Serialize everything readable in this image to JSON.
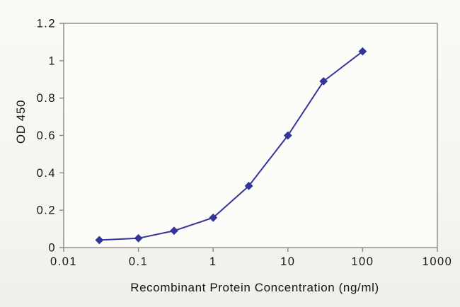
{
  "chart_data": {
    "type": "line",
    "title": "",
    "xlabel": "Recombinant Protein Concentration (ng/ml)",
    "ylabel": "OD 450",
    "x_scale": "log",
    "xlim": [
      0.01,
      1000
    ],
    "ylim": [
      0,
      1.2
    ],
    "x_ticks": [
      0.01,
      0.1,
      1,
      10,
      100,
      1000
    ],
    "x_tick_labels": [
      "0.01",
      "0.1",
      "1",
      "10",
      "100",
      "1000"
    ],
    "y_ticks": [
      0,
      0.2,
      0.4,
      0.6,
      0.8,
      1.0,
      1.2
    ],
    "y_tick_labels": [
      "0",
      "0.2",
      "0.4",
      "0.6",
      "0.8",
      "1",
      "1.2"
    ],
    "grid": false,
    "legend": false,
    "series": [
      {
        "name": "OD 450",
        "marker": "diamond",
        "color": "#34349b",
        "x": [
          0.03,
          0.1,
          0.3,
          1,
          3,
          10,
          30,
          100
        ],
        "y": [
          0.04,
          0.05,
          0.09,
          0.16,
          0.33,
          0.6,
          0.89,
          1.05
        ]
      }
    ]
  },
  "colors": {
    "background": "#f7f6f1",
    "plot_background": "#fcfcf8",
    "axis": "#8a8a86",
    "text": "#161616",
    "series": "#34349b"
  }
}
